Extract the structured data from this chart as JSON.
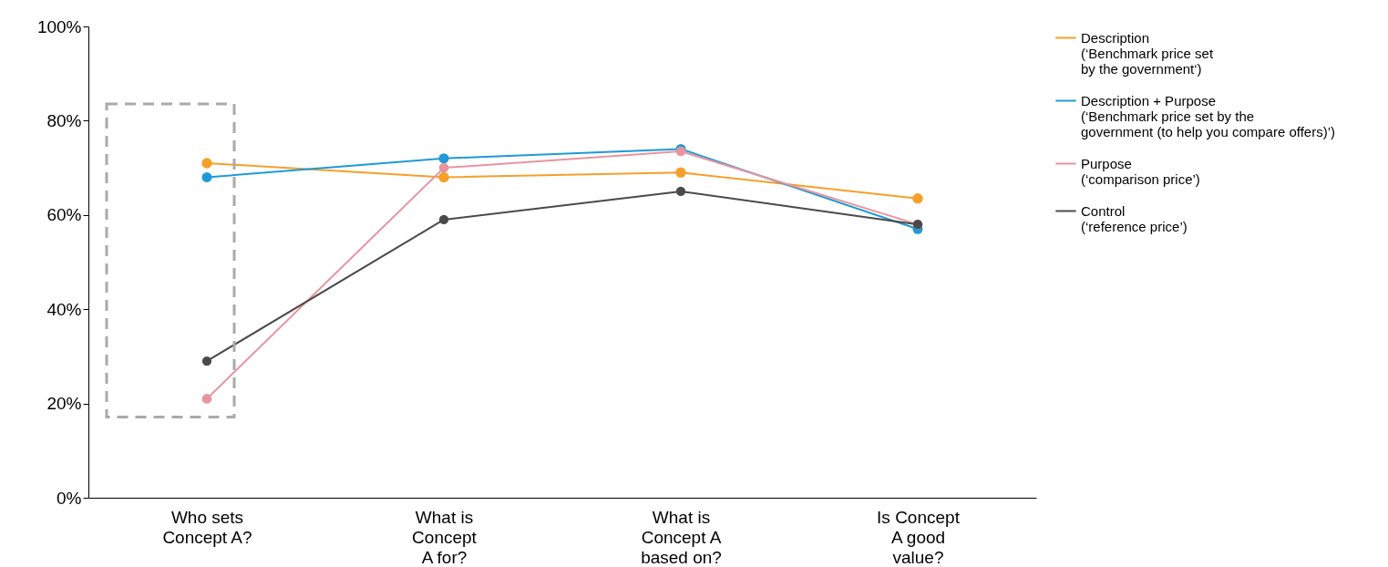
{
  "chart_data": {
    "type": "line",
    "categories": [
      "Who sets\nConcept A?",
      "What is\nConcept\nA for?",
      "What is\nConcept A\nbased on?",
      "Is Concept\nA good\nvalue?"
    ],
    "series": [
      {
        "name": "Description\n(‘Benchmark price set\nby the government‘)",
        "color": "#f5a02a",
        "values": [
          71,
          68,
          69,
          63.5
        ]
      },
      {
        "name": "Description + Purpose\n(‘Benchmark price set by the\ngovernment (to help you compare offers)’)",
        "color": "#1f9ad6",
        "values": [
          68,
          72,
          74,
          57
        ]
      },
      {
        "name": "Purpose\n(‘comparison price’)",
        "color": "#e8949f",
        "values": [
          21,
          70,
          73.5,
          58
        ]
      },
      {
        "name": "Control\n(‘reference price’)",
        "color": "#4a4a4a",
        "values": [
          29,
          59,
          65,
          58
        ]
      }
    ],
    "ylim": [
      0,
      100
    ],
    "yticks": [
      {
        "value": 0,
        "label": "0%"
      },
      {
        "value": 20,
        "label": "20%"
      },
      {
        "value": 40,
        "label": "40%"
      },
      {
        "value": 60,
        "label": "60%"
      },
      {
        "value": 80,
        "label": "80%"
      },
      {
        "value": 100,
        "label": "100%"
      }
    ],
    "grid": false,
    "legend": "right",
    "marker": "circle",
    "line_style": "solid"
  }
}
